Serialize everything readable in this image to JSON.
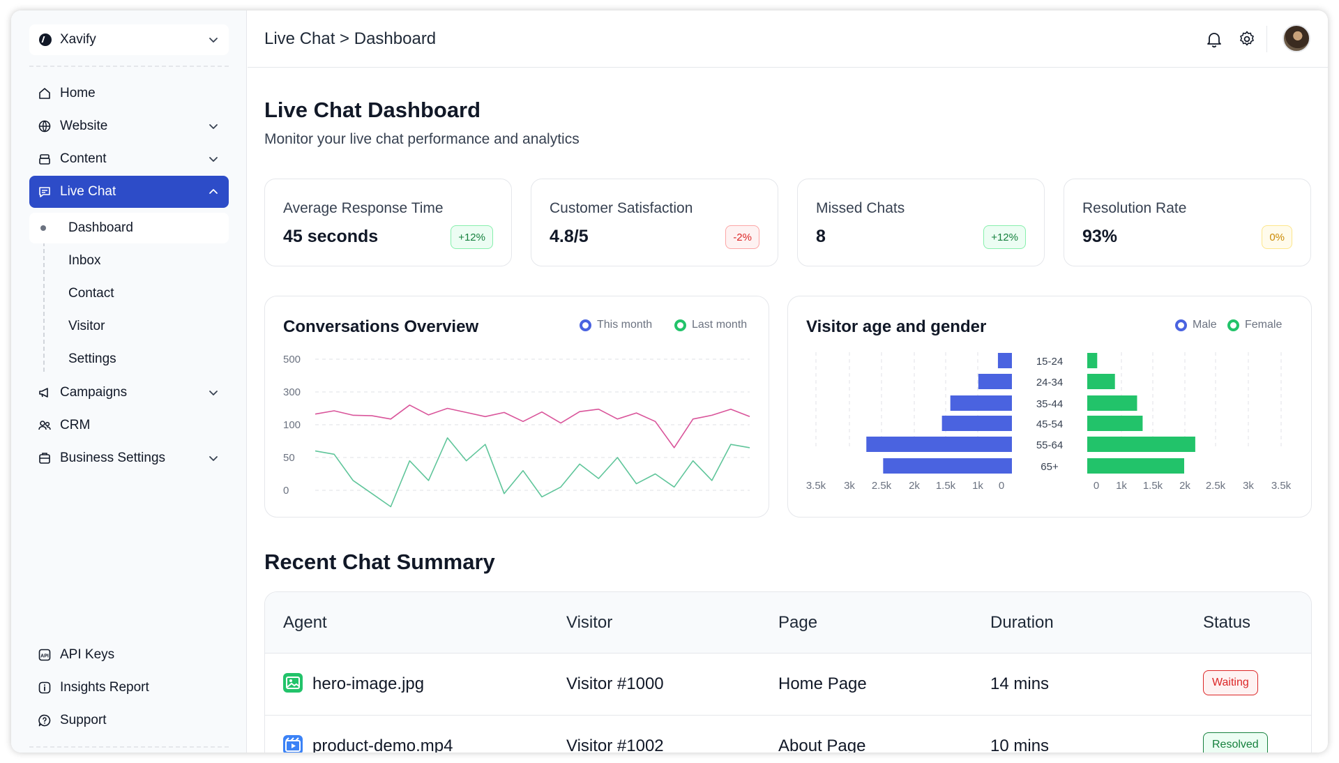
{
  "workspace": {
    "name": "Xavify"
  },
  "sidebar": {
    "items": [
      {
        "label": "Home",
        "icon": "home-icon"
      },
      {
        "label": "Website",
        "icon": "globe-icon"
      },
      {
        "label": "Content",
        "icon": "stack-icon"
      },
      {
        "label": "Live Chat",
        "icon": "chat-icon"
      },
      {
        "label": "Campaigns",
        "icon": "megaphone-icon"
      },
      {
        "label": "CRM",
        "icon": "users-icon"
      },
      {
        "label": "Business Settings",
        "icon": "building-icon"
      }
    ],
    "live_chat_sub": [
      "Dashboard",
      "Inbox",
      "Contact",
      "Visitor",
      "Settings"
    ],
    "bottom": [
      {
        "label": "API Keys",
        "icon": "api-icon"
      },
      {
        "label": "Insights Report",
        "icon": "info-icon"
      },
      {
        "label": "Support",
        "icon": "help-icon"
      }
    ]
  },
  "header": {
    "breadcrumb": "Live Chat > Dashboard"
  },
  "page": {
    "title": "Live Chat Dashboard",
    "subtitle": "Monitor your live chat performance and analytics"
  },
  "stats": [
    {
      "label": "Average Response Time",
      "value": "45 seconds",
      "change": "+12%",
      "tone": "green"
    },
    {
      "label": "Customer Satisfaction",
      "value": "4.8/5",
      "change": "-2%",
      "tone": "red"
    },
    {
      "label": "Missed Chats",
      "value": "8",
      "change": "+12%",
      "tone": "green"
    },
    {
      "label": "Resolution Rate",
      "value": "93%",
      "change": "0%",
      "tone": "yellow"
    }
  ],
  "colors": {
    "accent": "#2d4cc8",
    "this_month": "#d9549a",
    "last_month": "#5fc59a",
    "male": "#4a63e0",
    "female": "#22c36a"
  },
  "chart_data": [
    {
      "type": "line",
      "title": "Conversations Overview",
      "y_ticks": [
        "500",
        "300",
        "100",
        "50",
        "0"
      ],
      "grid": true,
      "legend": "top-right",
      "series": [
        {
          "name": "This month",
          "values": [
            165,
            185,
            158,
            155,
            135,
            220,
            160,
            200,
            175,
            150,
            175,
            120,
            178,
            110,
            180,
            195,
            135,
            172,
            120,
            65,
            135,
            158,
            195,
            150
          ]
        },
        {
          "name": "Last month",
          "values": [
            60,
            55,
            15,
            -5,
            -25,
            45,
            15,
            80,
            45,
            70,
            -5,
            30,
            -10,
            5,
            40,
            18,
            50,
            10,
            25,
            5,
            45,
            15,
            70,
            65
          ]
        }
      ]
    },
    {
      "type": "bar",
      "title": "Visitor age and gender",
      "categories": [
        "15-24",
        "24-34",
        "35-44",
        "45-54",
        "55-64",
        "65+"
      ],
      "x_ticks_left": [
        "3.5k",
        "3k",
        "2.5k",
        "2k",
        "1.5k",
        "1k",
        "0"
      ],
      "x_ticks_right": [
        "0",
        "1k",
        "1.5k",
        "2k",
        "2.5k",
        "3k",
        "3.5k"
      ],
      "legend": "top-right",
      "series": [
        {
          "name": "Male",
          "values": [
            250,
            600,
            1100,
            1250,
            2600,
            2300
          ]
        },
        {
          "name": "Female",
          "values": [
            180,
            500,
            900,
            1000,
            1950,
            1750
          ]
        }
      ]
    }
  ],
  "recent": {
    "title": "Recent Chat Summary",
    "columns": [
      "Agent",
      "Visitor",
      "Page",
      "Duration",
      "Status"
    ],
    "rows": [
      {
        "agent": "hero-image.jpg",
        "visitor": "Visitor #1000",
        "page": "Home Page",
        "duration": "14 mins",
        "status": "Waiting",
        "tone": "red",
        "icon": "image-icon"
      },
      {
        "agent": "product-demo.mp4",
        "visitor": "Visitor #1002",
        "page": "About Page",
        "duration": "10 mins",
        "status": "Resolved",
        "tone": "green",
        "icon": "video-icon"
      }
    ]
  }
}
